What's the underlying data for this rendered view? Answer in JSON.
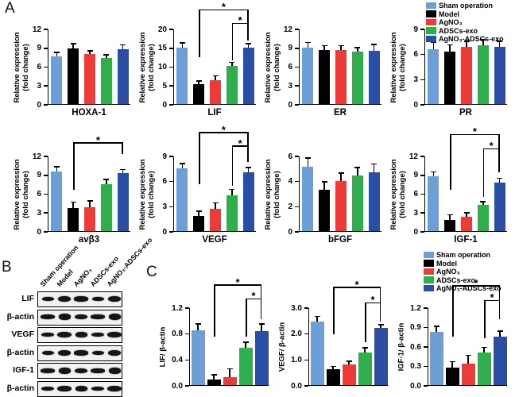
{
  "panels": {
    "a": "A",
    "b": "B",
    "c": "C"
  },
  "groups": [
    "Sham operation",
    "Model",
    "AgNO₃",
    "ADSCs-exo",
    "AgNO₃-ADSCs-exo"
  ],
  "legend": {
    "items": [
      {
        "label": "Sham operation",
        "color": "#6C9FD6"
      },
      {
        "label": "Model",
        "color": "#000000"
      },
      {
        "label": "AgNO₃",
        "color": "#EE3B35"
      },
      {
        "label": "ADSCs-exo",
        "color": "#2FAF4C"
      },
      {
        "label": "AgNO₃-ADSCs-exo",
        "color": "#2B4EA5"
      }
    ]
  },
  "axis": {
    "panel_a_ylabel_lines": [
      "Relative expression",
      "(fold change)"
    ]
  },
  "chart_data": [
    {
      "type": "bar",
      "panel": "A",
      "id": "hoxa1",
      "xtitle": "HOXA-1",
      "ylabel": "Relative expression (fold change)",
      "categories": [
        "Sham operation",
        "Model",
        "AgNO₃",
        "ADSCs-exo",
        "AgNO₃-ADSCs-exo"
      ],
      "yticks": [
        "0",
        "3",
        "6",
        "9",
        "12"
      ],
      "ylim": [
        0,
        12
      ],
      "values": [
        7.6,
        8.8,
        7.9,
        7.3,
        8.7
      ],
      "errors": [
        0.5,
        0.7,
        0.5,
        0.4,
        0.6
      ],
      "significance": []
    },
    {
      "type": "bar",
      "panel": "A",
      "id": "lif",
      "xtitle": "LIF",
      "ylabel": "Relative expression (fold change)",
      "categories": [
        "Sham operation",
        "Model",
        "AgNO₃",
        "ADSCs-exo",
        "AgNO₃-ADSCs-exo"
      ],
      "yticks": [
        "0",
        "5",
        "10",
        "15",
        "20"
      ],
      "ylim": [
        0,
        20
      ],
      "values": [
        15,
        5.3,
        6.4,
        10.2,
        15
      ],
      "errors": [
        1.0,
        0.6,
        0.9,
        0.7,
        0.8
      ],
      "significance": [
        {
          "from": 1,
          "to": 4,
          "label": "*",
          "y": 1.24,
          "yl": 0.62,
          "yr": 1.06
        },
        {
          "from": 3,
          "to": 4,
          "label": "*",
          "y": 1.06,
          "yl": 0.58,
          "yr": 0.84
        }
      ]
    },
    {
      "type": "bar",
      "panel": "A",
      "id": "er",
      "xtitle": "ER",
      "ylabel": "Relative expression (fold change)",
      "categories": [
        "Sham operation",
        "Model",
        "AgNO₃",
        "ADSCs-exo",
        "AgNO₃-ADSCs-exo"
      ],
      "yticks": [
        "0",
        "3",
        "6",
        "9",
        "12"
      ],
      "ylim": [
        0,
        12
      ],
      "values": [
        9.0,
        8.6,
        8.6,
        8.3,
        8.5
      ],
      "errors": [
        0.7,
        0.6,
        0.6,
        0.6,
        0.9
      ],
      "significance": []
    },
    {
      "type": "bar",
      "panel": "A",
      "id": "pr",
      "xtitle": "PR",
      "ylabel": "Relative expression (fold change)",
      "categories": [
        "Sham operation",
        "Model",
        "AgNO₃",
        "ADSCs-exo",
        "AgNO₃-ADSCs-exo"
      ],
      "yticks": [
        "0",
        "3",
        "6",
        "9"
      ],
      "ylim": [
        0,
        9
      ],
      "values": [
        6.5,
        6.3,
        6.8,
        7.0,
        6.8
      ],
      "errors": [
        0.8,
        0.7,
        0.6,
        0.6,
        0.6
      ],
      "significance": []
    },
    {
      "type": "bar",
      "panel": "A",
      "id": "avb3",
      "xtitle": "avβ3",
      "ylabel": "Relative expression (fold change)",
      "categories": [
        "Sham operation",
        "Model",
        "AgNO₃",
        "ADSCs-exo",
        "AgNO₃-ADSCs-exo"
      ],
      "yticks": [
        "0",
        "3",
        "6",
        "9",
        "12"
      ],
      "ylim": [
        0,
        12
      ],
      "values": [
        9.5,
        3.7,
        3.8,
        7.5,
        9.2
      ],
      "errors": [
        0.6,
        0.8,
        0.9,
        0.6,
        0.5
      ],
      "significance": [
        {
          "from": 1,
          "to": 4,
          "label": "*",
          "y": 1.16,
          "yl": 0.55,
          "yr": 1.02
        }
      ]
    },
    {
      "type": "bar",
      "panel": "A",
      "id": "vegf",
      "xtitle": "VEGF",
      "ylabel": "Relative expression (fold change)",
      "categories": [
        "Sham operation",
        "Model",
        "AgNO₃",
        "ADSCs-exo",
        "AgNO₃-ADSCs-exo"
      ],
      "yticks": [
        "0",
        "3",
        "6",
        "9"
      ],
      "ylim": [
        0,
        9
      ],
      "values": [
        7.5,
        1.8,
        2.7,
        4.3,
        7.0
      ],
      "errors": [
        0.5,
        0.5,
        0.6,
        0.6,
        0.5
      ],
      "significance": [
        {
          "from": 1,
          "to": 4,
          "label": "*",
          "y": 1.3,
          "yl": 0.62,
          "yr": 1.12
        },
        {
          "from": 3,
          "to": 4,
          "label": "*",
          "y": 1.12,
          "yl": 0.6,
          "yr": 0.92
        }
      ]
    },
    {
      "type": "bar",
      "panel": "A",
      "id": "bfgf",
      "xtitle": "bFGF",
      "ylabel": "Relative expression (fold change)",
      "categories": [
        "Sham operation",
        "Model",
        "AgNO₃",
        "ADSCs-exo",
        "AgNO₃-ADSCs-exo"
      ],
      "yticks": [
        "0",
        "2",
        "4",
        "6"
      ],
      "ylim": [
        0,
        6
      ],
      "values": [
        5.1,
        3.3,
        4.0,
        4.4,
        4.7
      ],
      "errors": [
        0.65,
        0.55,
        0.55,
        0.6,
        0.6
      ],
      "significance": []
    },
    {
      "type": "bar",
      "panel": "A",
      "id": "igf1",
      "xtitle": "IGF-1",
      "ylabel": "Relative expression (fold change)",
      "categories": [
        "Sham operation",
        "Model",
        "AgNO₃",
        "ADSCs-exo",
        "AgNO₃-ADSCs-exo"
      ],
      "yticks": [
        "0",
        "3",
        "6",
        "9",
        "12"
      ],
      "ylim": [
        0,
        12
      ],
      "values": [
        8.7,
        1.8,
        2.3,
        4.2,
        7.7
      ],
      "errors": [
        0.6,
        0.7,
        0.5,
        0.4,
        0.6
      ],
      "significance": [
        {
          "from": 1,
          "to": 4,
          "label": "*",
          "y": 1.27,
          "yl": 0.55,
          "yr": 1.08
        },
        {
          "from": 3,
          "to": 4,
          "label": "*",
          "y": 1.08,
          "yl": 0.45,
          "yr": 0.78
        }
      ]
    },
    {
      "type": "bar",
      "panel": "C",
      "id": "lif-bactin",
      "xtitle": "",
      "ylabel": "LIF/ β-actin",
      "categories": [
        "Sham operation",
        "Model",
        "AgNO₃",
        "ADSCs-exo",
        "AgNO₃-ADSCs-exo"
      ],
      "yticks": [
        "0.0",
        "0.4",
        "0.8",
        "1.2"
      ],
      "ylim": [
        0,
        1.2
      ],
      "values": [
        0.85,
        0.08,
        0.12,
        0.57,
        0.83
      ],
      "errors": [
        0.08,
        0.07,
        0.12,
        0.08,
        0.1
      ],
      "significance": [
        {
          "from": 1,
          "to": 4,
          "label": "*",
          "y": 1.28,
          "yl": 0.62,
          "yr": 1.1
        },
        {
          "from": 3,
          "to": 4,
          "label": "*",
          "y": 1.1,
          "yl": 0.62,
          "yr": 0.85
        }
      ]
    },
    {
      "type": "bar",
      "panel": "C",
      "id": "vegf-bactin",
      "xtitle": "",
      "ylabel": "VEGF/ β-actin",
      "categories": [
        "Sham operation",
        "Model",
        "AgNO₃",
        "ADSCs-exo",
        "AgNO₃-ADSCs-exo"
      ],
      "yticks": [
        "0.0",
        "1.0",
        "2.0",
        "3.0"
      ],
      "ylim": [
        0,
        3.0
      ],
      "values": [
        2.45,
        0.6,
        0.8,
        1.27,
        2.2
      ],
      "errors": [
        0.18,
        0.1,
        0.1,
        0.15,
        0.1
      ],
      "significance": [
        {
          "from": 1,
          "to": 4,
          "label": "*",
          "y": 1.25,
          "yl": 0.65,
          "yr": 1.05
        },
        {
          "from": 3,
          "to": 4,
          "label": "*",
          "y": 1.05,
          "yl": 0.55,
          "yr": 0.82
        }
      ]
    },
    {
      "type": "bar",
      "panel": "C",
      "id": "igf1-bactin",
      "xtitle": "",
      "ylabel": "IGF-1/ β-actin",
      "categories": [
        "Sham operation",
        "Model",
        "AgNO₃",
        "ADSCs-exo",
        "AgNO₃-ADSCs-exo"
      ],
      "yticks": [
        "0.0",
        "0.3",
        "0.6",
        "0.9",
        "1.2"
      ],
      "ylim": [
        0,
        1.2
      ],
      "values": [
        0.82,
        0.27,
        0.33,
        0.5,
        0.75
      ],
      "errors": [
        0.08,
        0.08,
        0.12,
        0.07,
        0.07
      ],
      "significance": [
        {
          "from": 1,
          "to": 4,
          "label": "*",
          "y": 1.27,
          "yl": 0.62,
          "yr": 1.08
        },
        {
          "from": 3,
          "to": 4,
          "label": "*",
          "y": 1.08,
          "yl": 0.6,
          "yr": 0.85
        }
      ]
    }
  ],
  "western_blot": {
    "column_labels": [
      "Sham operation",
      "Model",
      "AgNO₃",
      "ADSCs-exo",
      "AgNO₃-ADSCs-exo"
    ],
    "rows": [
      {
        "label": "LIF"
      },
      {
        "label": "β-actin"
      },
      {
        "label": "VEGF"
      },
      {
        "label": "β-actin"
      },
      {
        "label": "IGF-1"
      },
      {
        "label": "β-actin"
      }
    ]
  }
}
